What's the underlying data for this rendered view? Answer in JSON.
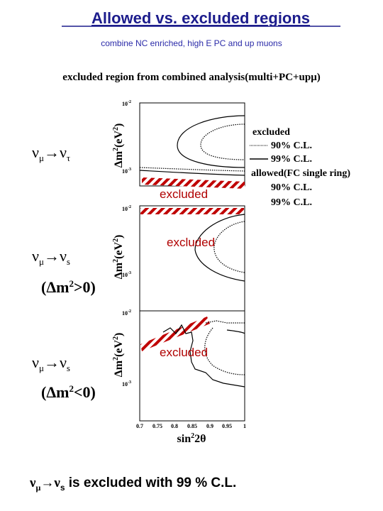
{
  "header": {
    "title": "Allowed vs. excluded regions",
    "subtitle": "combine NC enriched, high E PC and up muons"
  },
  "figure": {
    "title": "excluded region from combined analysis(multi+PC+upμ)",
    "y_label": [
      "Δm",
      "2",
      "(eV",
      "2",
      ")"
    ],
    "x_label": [
      "sin",
      "2",
      "2θ"
    ],
    "x_ticks": [
      "0.7",
      "0.75",
      "0.8",
      "0.85",
      "0.9",
      "0.95",
      "1"
    ],
    "panels": [
      {
        "label": [
          "ν",
          "μ",
          "→",
          "ν",
          "τ"
        ],
        "excluded": "excluded",
        "y_ticks": [
          [
            "10",
            "-2"
          ],
          [
            "10",
            "-3"
          ]
        ]
      },
      {
        "label": [
          "ν",
          "μ",
          "→",
          "ν",
          "s"
        ],
        "condition": [
          "(Δm",
          "2",
          ">0)"
        ],
        "excluded": "excluded",
        "y_ticks": [
          [
            "10",
            "-2"
          ],
          [
            "10",
            "-3"
          ]
        ]
      },
      {
        "label": [
          "ν",
          "μ",
          "→",
          "ν",
          "s"
        ],
        "condition": [
          "(Δm",
          "2",
          "<0)"
        ],
        "excluded": "excluded",
        "y_ticks": [
          [
            "10",
            "-2"
          ],
          [
            "10",
            "-3"
          ]
        ]
      }
    ],
    "legend": {
      "excluded": "excluded",
      "excl_90": "90% C.L.",
      "excl_99": "99% C.L.",
      "allowed": "allowed(FC single ring)",
      "allow_90": "90% C.L.",
      "allow_99": "99% C.L."
    }
  },
  "conclusion": [
    "ν",
    "μ",
    "→",
    "ν",
    "s",
    " is excluded with 99 % C.L."
  ]
}
